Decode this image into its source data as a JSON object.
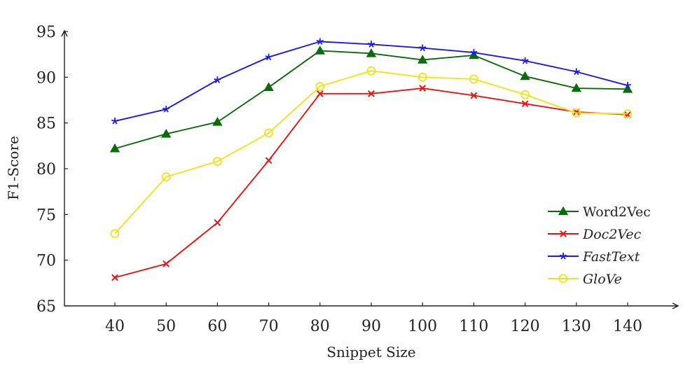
{
  "chart_data": {
    "type": "line",
    "xlabel": "Snippet Size",
    "ylabel": "F1-Score",
    "x": [
      40,
      50,
      60,
      70,
      80,
      90,
      100,
      110,
      120,
      130,
      140
    ],
    "xlim": [
      30,
      150
    ],
    "ylim": [
      65,
      95
    ],
    "yticks": [
      65,
      70,
      75,
      80,
      85,
      90,
      95
    ],
    "grid": false,
    "legend_position": "bottom-right",
    "series": [
      {
        "name": "Word2Vec",
        "italic": false,
        "color": "#0b6a0b",
        "marker": "triangle",
        "values": [
          82.2,
          83.8,
          85.1,
          88.9,
          92.9,
          92.6,
          91.9,
          92.4,
          90.1,
          88.8,
          88.7
        ]
      },
      {
        "name": "Doc2Vec",
        "italic": true,
        "color": "#ee1111",
        "marker": "cross",
        "values": [
          68.1,
          69.6,
          74.1,
          80.9,
          88.2,
          88.2,
          88.8,
          88.0,
          87.1,
          86.2,
          85.9
        ]
      },
      {
        "name": "FastText",
        "italic": true,
        "color": "#1a1aee",
        "marker": "star",
        "values": [
          85.2,
          86.5,
          89.7,
          92.2,
          93.9,
          93.6,
          93.2,
          92.7,
          91.8,
          90.6,
          89.1
        ]
      },
      {
        "name": "GloVe",
        "italic": true,
        "color": "#f2e21a",
        "marker": "circle",
        "values": [
          72.9,
          79.1,
          80.8,
          83.9,
          89.0,
          90.7,
          90.0,
          89.8,
          88.1,
          86.1,
          86.0
        ]
      }
    ]
  }
}
